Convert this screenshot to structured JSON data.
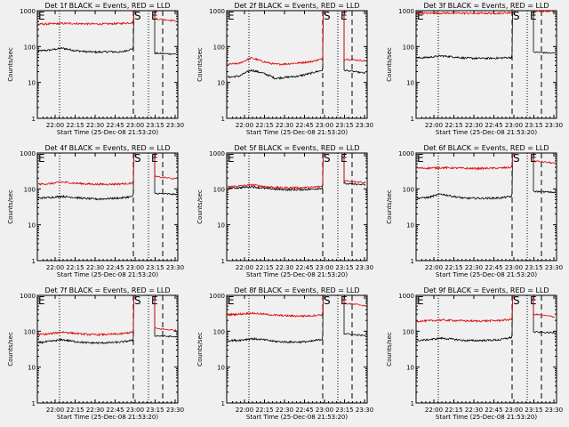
{
  "figure": {
    "background": "#f0f0f0",
    "events_color": "#000000",
    "lld_color": "#dd0000",
    "y_label": "Counts/sec",
    "x_label": "Start Time (25-Dec-08 21:53:20)",
    "x_tick_labels": [
      "22:00",
      "22:15",
      "22:30",
      "22:45",
      "23:00",
      "23:15",
      "23:30"
    ],
    "y_tick_labels": [
      "1",
      "10",
      "100",
      "1000"
    ],
    "marker_labels": {
      "start": "E",
      "mid_s": "S",
      "mid_e": "E"
    }
  },
  "chart_data": [
    {
      "type": "line",
      "title": "Det 1f BLACK = Events, RED = LLD",
      "yscale": "log",
      "ylim": [
        1,
        1000
      ],
      "series": [
        {
          "name": "Events",
          "values": [
            75,
            80,
            90,
            78,
            72,
            70,
            72,
            70,
            88
          ],
          "post": [
            65,
            62
          ]
        },
        {
          "name": "LLD",
          "values": [
            420,
            430,
            440,
            440,
            430,
            425,
            430,
            440,
            470
          ],
          "post": [
            600,
            520
          ]
        }
      ]
    },
    {
      "type": "line",
      "title": "Det 2f BLACK = Events, RED = LLD",
      "yscale": "log",
      "ylim": [
        1,
        1000
      ],
      "series": [
        {
          "name": "Events",
          "values": [
            14,
            15,
            22,
            18,
            13,
            14,
            15,
            18,
            22
          ],
          "post": [
            22,
            18
          ]
        },
        {
          "name": "LLD",
          "values": [
            32,
            34,
            48,
            38,
            32,
            33,
            35,
            38,
            45
          ],
          "post": [
            45,
            40
          ]
        }
      ]
    },
    {
      "type": "line",
      "title": "Det 3f BLACK = Events, RED = LLD",
      "yscale": "log",
      "ylim": [
        1,
        1000
      ],
      "series": [
        {
          "name": "Events",
          "values": [
            48,
            50,
            55,
            52,
            48,
            47,
            47,
            48,
            50
          ],
          "post": [
            70,
            65
          ]
        },
        {
          "name": "LLD",
          "values": [
            850,
            850,
            860,
            860,
            850,
            850,
            850,
            855,
            880
          ],
          "post": [
            980,
            950
          ]
        }
      ]
    },
    {
      "type": "line",
      "title": "Det 4f BLACK = Events, RED = LLD",
      "yscale": "log",
      "ylim": [
        1,
        1000
      ],
      "series": [
        {
          "name": "Events",
          "values": [
            55,
            58,
            62,
            58,
            54,
            52,
            54,
            56,
            62
          ],
          "post": [
            75,
            70
          ]
        },
        {
          "name": "LLD",
          "values": [
            135,
            140,
            155,
            145,
            138,
            135,
            135,
            138,
            145
          ],
          "post": [
            220,
            190
          ]
        }
      ]
    },
    {
      "type": "line",
      "title": "Det 5f BLACK = Events, RED = LLD",
      "yscale": "log",
      "ylim": [
        1,
        1000
      ],
      "series": [
        {
          "name": "Events",
          "values": [
            105,
            108,
            115,
            105,
            98,
            95,
            95,
            98,
            105
          ],
          "post": [
            140,
            130
          ]
        },
        {
          "name": "LLD",
          "values": [
            115,
            120,
            130,
            118,
            110,
            108,
            108,
            110,
            118
          ],
          "post": [
            170,
            150
          ]
        }
      ]
    },
    {
      "type": "line",
      "title": "Det 6f BLACK = Events, RED = LLD",
      "yscale": "log",
      "ylim": [
        1,
        1000
      ],
      "series": [
        {
          "name": "Events",
          "values": [
            55,
            58,
            72,
            62,
            55,
            55,
            55,
            56,
            62
          ],
          "post": [
            85,
            80
          ]
        },
        {
          "name": "LLD",
          "values": [
            380,
            380,
            390,
            385,
            375,
            370,
            375,
            380,
            400
          ],
          "post": [
            600,
            520
          ]
        }
      ]
    },
    {
      "type": "line",
      "title": "Det 7f BLACK = Events, RED = LLD",
      "yscale": "log",
      "ylim": [
        1,
        1000
      ],
      "series": [
        {
          "name": "Events",
          "values": [
            48,
            52,
            58,
            52,
            48,
            47,
            48,
            50,
            56
          ],
          "post": [
            75,
            70
          ]
        },
        {
          "name": "LLD",
          "values": [
            80,
            85,
            95,
            88,
            82,
            80,
            82,
            85,
            95
          ],
          "post": [
            120,
            105
          ]
        }
      ]
    },
    {
      "type": "line",
      "title": "Det 8f BLACK = Events, RED = LLD",
      "yscale": "log",
      "ylim": [
        1,
        1000
      ],
      "series": [
        {
          "name": "Events",
          "values": [
            55,
            56,
            62,
            58,
            52,
            50,
            50,
            52,
            60
          ],
          "post": [
            85,
            75
          ]
        },
        {
          "name": "LLD",
          "values": [
            290,
            300,
            320,
            300,
            280,
            270,
            265,
            270,
            290
          ],
          "post": [
            600,
            520
          ]
        }
      ]
    },
    {
      "type": "line",
      "title": "Det 9f BLACK = Events, RED = LLD",
      "yscale": "log",
      "ylim": [
        1,
        1000
      ],
      "series": [
        {
          "name": "Events",
          "values": [
            55,
            58,
            64,
            60,
            55,
            55,
            56,
            58,
            68
          ],
          "post": [
            95,
            90
          ]
        },
        {
          "name": "LLD",
          "values": [
            190,
            195,
            205,
            200,
            195,
            192,
            195,
            200,
            215
          ],
          "post": [
            300,
            250
          ]
        }
      ]
    }
  ]
}
